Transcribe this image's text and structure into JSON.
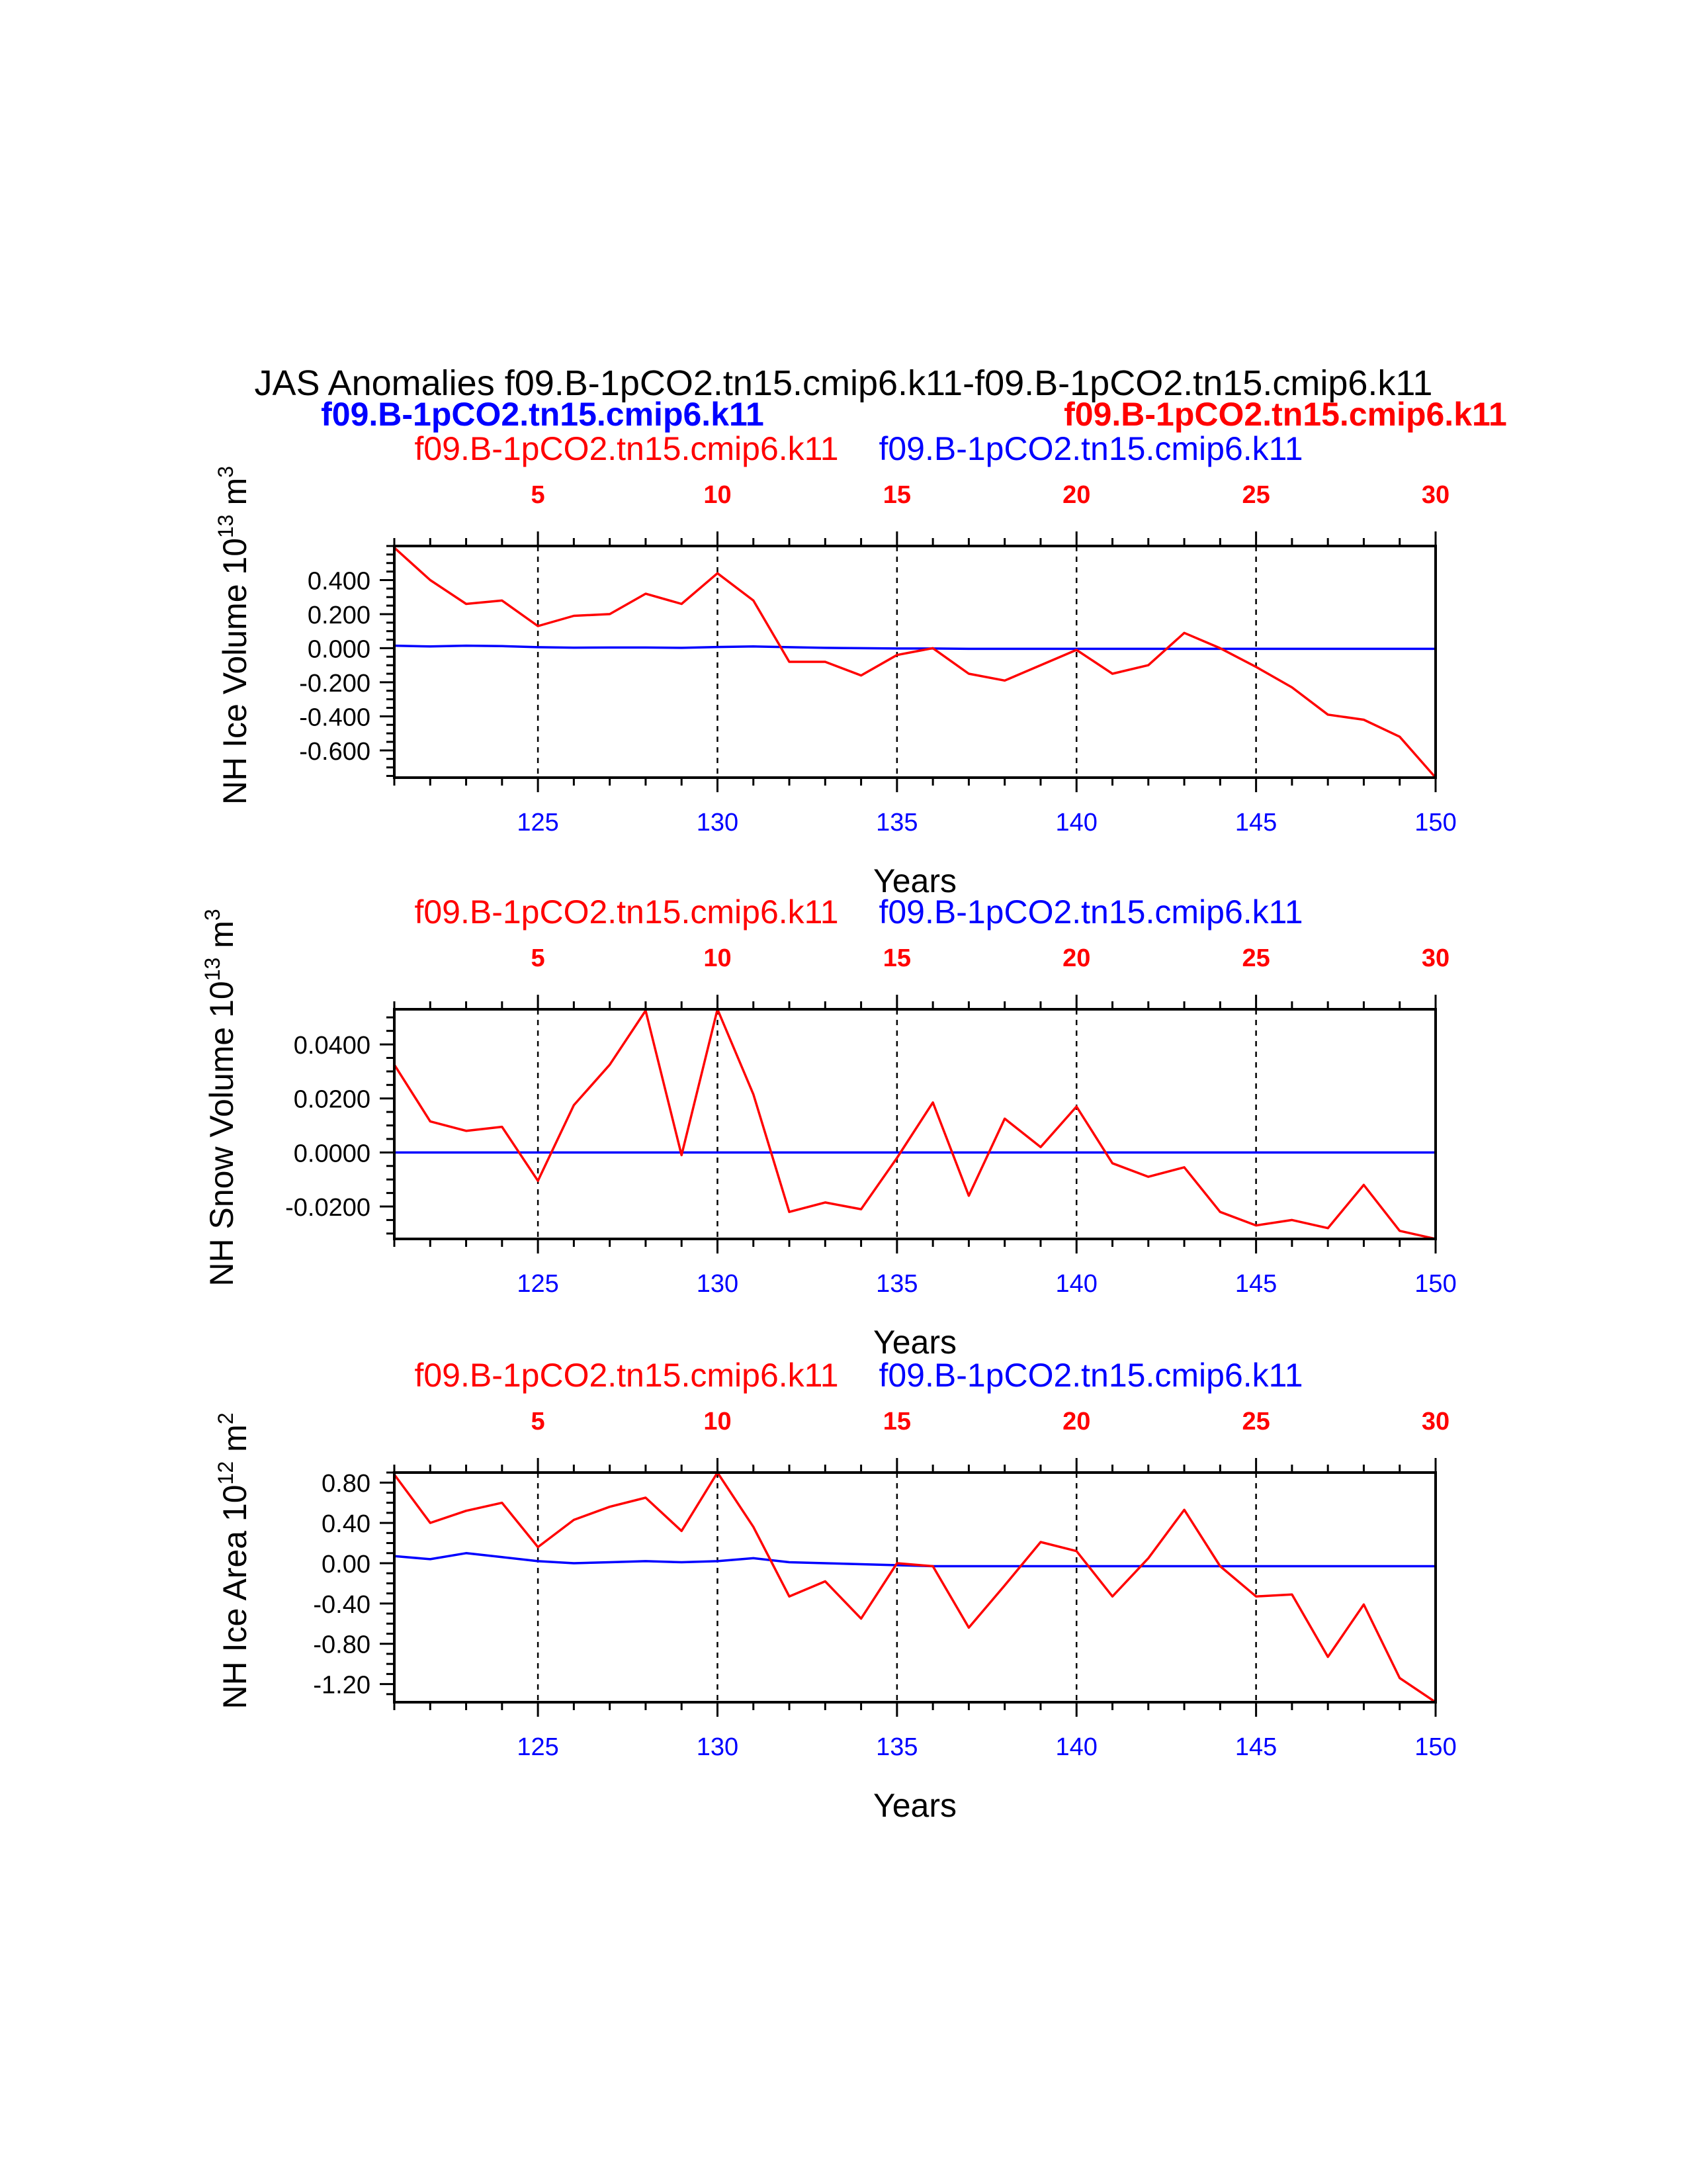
{
  "page": {
    "title": "JAS Anomalies f09.B-1pCO2.tn15.cmip6.k11-f09.B-1pCO2.tn15.cmip6.k11",
    "case_left_bold": "f09.B-1pCO2.tn15.cmip6.k11",
    "case_right_bold": "f09.B-1pCO2.tn15.cmip6.k11"
  },
  "colors": {
    "red": "#ff0000",
    "blue": "#0000ff",
    "black": "#000000"
  },
  "chart_data": [
    {
      "type": "line",
      "panel": "ice-volume",
      "ylabel": "NH Ice Volume 10",
      "ylabel_exp": "13",
      "ylabel_unit": " m",
      "ylabel_unit_exp": "3",
      "xlabel": "Years",
      "legend_left": "f09.B-1pCO2.tn15.cmip6.k11",
      "legend_right": "f09.B-1pCO2.tn15.cmip6.k11",
      "xlim": [
        121,
        150
      ],
      "ylim": [
        -0.76,
        0.6
      ],
      "yticks": [
        0.4,
        0.2,
        0.0,
        -0.2,
        -0.4,
        -0.6
      ],
      "ytick_labels": [
        "0.400",
        "0.200",
        "0.000",
        "-0.200",
        "-0.400",
        "-0.600"
      ],
      "yminor_step": 0.05,
      "bottom_ticks": [
        125,
        130,
        135,
        140,
        145,
        150
      ],
      "bottom_tick_labels": [
        "125",
        "130",
        "135",
        "140",
        "145",
        "150"
      ],
      "top_tick_labels": [
        "5",
        "10",
        "15",
        "20",
        "25",
        "30"
      ],
      "x": [
        121,
        122,
        123,
        124,
        125,
        126,
        127,
        128,
        129,
        130,
        131,
        132,
        133,
        134,
        135,
        136,
        137,
        138,
        139,
        140,
        141,
        142,
        143,
        144,
        145,
        146,
        147,
        148,
        149,
        150
      ],
      "series": [
        {
          "name": "f09.B-1pCO2.tn15.cmip6.k11",
          "color": "#ff0000",
          "values": [
            0.59,
            0.4,
            0.26,
            0.28,
            0.13,
            0.19,
            0.2,
            0.32,
            0.26,
            0.44,
            0.28,
            -0.08,
            -0.08,
            -0.16,
            -0.04,
            0.0,
            -0.15,
            -0.19,
            -0.1,
            -0.01,
            -0.15,
            -0.1,
            0.09,
            0.0,
            -0.11,
            -0.23,
            -0.39,
            -0.42,
            -0.52,
            -0.76
          ]
        },
        {
          "name": "f09.B-1pCO2.tn15.cmip6.k11",
          "color": "#0000ff",
          "values": [
            0.015,
            0.01,
            0.015,
            0.012,
            0.006,
            0.003,
            0.004,
            0.004,
            0.002,
            0.007,
            0.01,
            0.006,
            0.002,
            0.0,
            -0.002,
            -0.002,
            -0.004,
            -0.004,
            -0.004,
            -0.004,
            -0.004,
            -0.004,
            -0.004,
            -0.004,
            -0.004,
            -0.004,
            -0.004,
            -0.004,
            -0.004,
            -0.004
          ]
        }
      ]
    },
    {
      "type": "line",
      "panel": "snow-volume",
      "ylabel": "NH Snow Volume 10",
      "ylabel_exp": "13",
      "ylabel_unit": " m",
      "ylabel_unit_exp": "3",
      "xlabel": "Years",
      "legend_left": "f09.B-1pCO2.tn15.cmip6.k11",
      "legend_right": "f09.B-1pCO2.tn15.cmip6.k11",
      "xlim": [
        121,
        150
      ],
      "ylim": [
        -0.032,
        0.053
      ],
      "yticks": [
        0.04,
        0.02,
        0.0,
        -0.02
      ],
      "ytick_labels": [
        "0.0400",
        "0.0200",
        "0.0000",
        "-0.0200"
      ],
      "yminor_step": 0.005,
      "bottom_ticks": [
        125,
        130,
        135,
        140,
        145,
        150
      ],
      "bottom_tick_labels": [
        "125",
        "130",
        "135",
        "140",
        "145",
        "150"
      ],
      "top_tick_labels": [
        "5",
        "10",
        "15",
        "20",
        "25",
        "30"
      ],
      "x": [
        121,
        122,
        123,
        124,
        125,
        126,
        127,
        128,
        129,
        130,
        131,
        132,
        133,
        134,
        135,
        136,
        137,
        138,
        139,
        140,
        141,
        142,
        143,
        144,
        145,
        146,
        147,
        148,
        149,
        150
      ],
      "series": [
        {
          "name": "f09.B-1pCO2.tn15.cmip6.k11",
          "color": "#ff0000",
          "values": [
            0.0325,
            0.0115,
            0.008,
            0.0095,
            -0.0105,
            0.0175,
            0.0325,
            0.0525,
            -0.001,
            0.053,
            0.0215,
            -0.022,
            -0.0185,
            -0.021,
            -0.002,
            0.0185,
            -0.016,
            0.0125,
            0.002,
            0.017,
            -0.004,
            -0.009,
            -0.0055,
            -0.022,
            -0.027,
            -0.025,
            -0.028,
            -0.012,
            -0.029,
            -0.032
          ]
        },
        {
          "name": "f09.B-1pCO2.tn15.cmip6.k11",
          "color": "#0000ff",
          "values": [
            0.0,
            0.0,
            0.0,
            0.0,
            0.0,
            0.0,
            0.0,
            0.0,
            0.0,
            0.0,
            0.0,
            0.0,
            0.0,
            0.0,
            0.0,
            0.0,
            0.0,
            0.0,
            0.0,
            0.0,
            0.0,
            0.0,
            0.0,
            0.0,
            0.0,
            0.0,
            0.0,
            0.0,
            0.0,
            0.0
          ]
        }
      ]
    },
    {
      "type": "line",
      "panel": "ice-area",
      "ylabel": "NH Ice Area 10",
      "ylabel_exp": "12",
      "ylabel_unit": " m",
      "ylabel_unit_exp": "2",
      "xlabel": "Years",
      "legend_left": "f09.B-1pCO2.tn15.cmip6.k11",
      "legend_right": "f09.B-1pCO2.tn15.cmip6.k11",
      "xlim": [
        121,
        150
      ],
      "ylim": [
        -1.38,
        0.9
      ],
      "yticks": [
        0.8,
        0.4,
        0.0,
        -0.4,
        -0.8,
        -1.2
      ],
      "ytick_labels": [
        "0.80",
        "0.40",
        "0.00",
        "-0.40",
        "-0.80",
        "-1.20"
      ],
      "yminor_step": 0.1,
      "bottom_ticks": [
        125,
        130,
        135,
        140,
        145,
        150
      ],
      "bottom_tick_labels": [
        "125",
        "130",
        "135",
        "140",
        "145",
        "150"
      ],
      "top_tick_labels": [
        "5",
        "10",
        "15",
        "20",
        "25",
        "30"
      ],
      "x": [
        121,
        122,
        123,
        124,
        125,
        126,
        127,
        128,
        129,
        130,
        131,
        132,
        133,
        134,
        135,
        136,
        137,
        138,
        139,
        140,
        141,
        142,
        143,
        144,
        145,
        146,
        147,
        148,
        149,
        150
      ],
      "series": [
        {
          "name": "f09.B-1pCO2.tn15.cmip6.k11",
          "color": "#ff0000",
          "values": [
            0.88,
            0.4,
            0.52,
            0.6,
            0.16,
            0.43,
            0.56,
            0.65,
            0.32,
            0.9,
            0.36,
            -0.33,
            -0.18,
            -0.55,
            0.0,
            -0.03,
            -0.64,
            -0.22,
            0.21,
            0.12,
            -0.33,
            0.05,
            0.53,
            -0.03,
            -0.33,
            -0.31,
            -0.93,
            -0.41,
            -1.14,
            -1.38
          ]
        },
        {
          "name": "f09.B-1pCO2.tn15.cmip6.k11",
          "color": "#0000ff",
          "values": [
            0.07,
            0.04,
            0.1,
            0.06,
            0.02,
            0.0,
            0.01,
            0.02,
            0.01,
            0.02,
            0.05,
            0.01,
            0.0,
            -0.01,
            -0.02,
            -0.03,
            -0.03,
            -0.03,
            -0.03,
            -0.03,
            -0.03,
            -0.03,
            -0.03,
            -0.03,
            -0.03,
            -0.03,
            -0.03,
            -0.03,
            -0.03,
            -0.03
          ]
        }
      ]
    }
  ]
}
